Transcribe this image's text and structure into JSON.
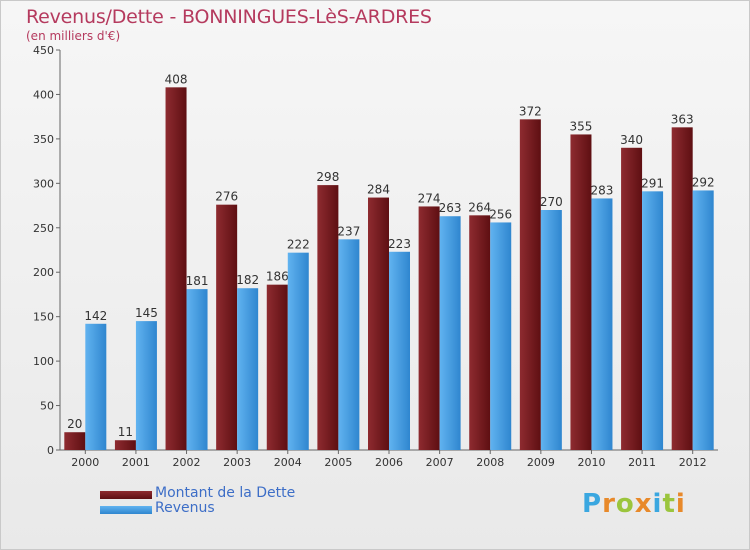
{
  "chart_data": {
    "type": "bar",
    "title": "Revenus/Dette - BONNINGUES-LèS-ARDRES",
    "subtitle": "(en milliers d'€)",
    "categories": [
      "2000",
      "2001",
      "2002",
      "2003",
      "2004",
      "2005",
      "2006",
      "2007",
      "2008",
      "2009",
      "2010",
      "2011",
      "2012"
    ],
    "series": [
      {
        "name": "Montant de la Dette",
        "color": "#7a1f22",
        "values": [
          20,
          11,
          408,
          276,
          186,
          298,
          284,
          274,
          264,
          372,
          355,
          340,
          363
        ]
      },
      {
        "name": "Revenus",
        "color": "#4aa3e6",
        "values": [
          142,
          145,
          181,
          182,
          222,
          237,
          223,
          263,
          256,
          270,
          283,
          291,
          292
        ]
      }
    ],
    "ylim": [
      0,
      450
    ],
    "yticks": [
      0,
      50,
      100,
      150,
      200,
      250,
      300,
      350,
      400,
      450
    ],
    "grid": false,
    "legend": "bottom-left"
  },
  "logo": {
    "text": "Proxiti"
  }
}
